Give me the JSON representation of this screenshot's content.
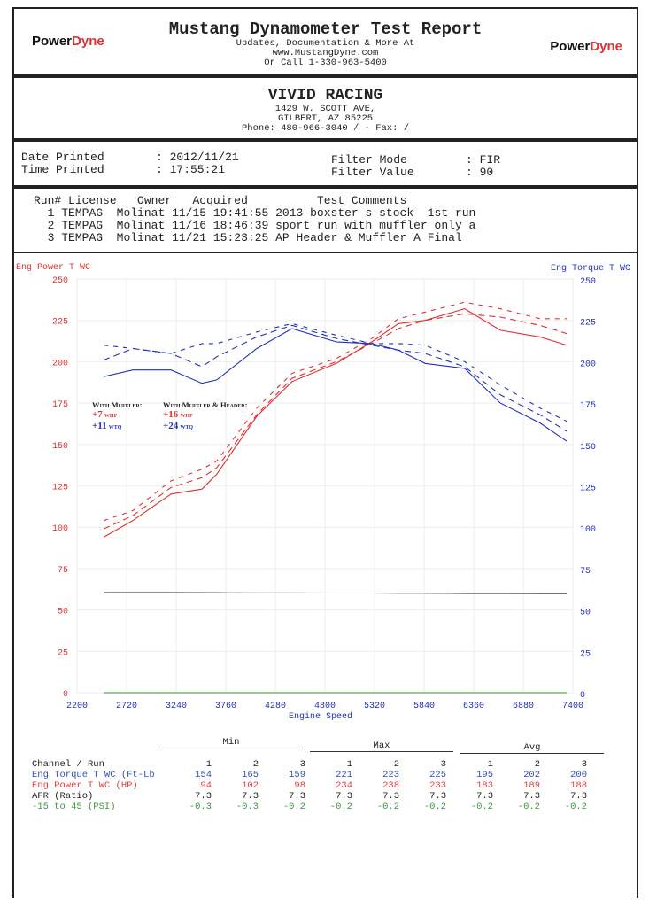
{
  "header": {
    "title": "Mustang Dynamometer Test Report",
    "line1": "Updates, Documentation & More At",
    "line2": "www.MustangDyne.com",
    "line3": "Or Call 1-330-963-5400",
    "logo_text_a": "Power",
    "logo_text_b": "Dyne"
  },
  "shop": {
    "name": "VIVID RACING",
    "address1": "1429 W. SCOTT AVE,",
    "address2": "GILBERT, AZ  85225",
    "phone": "Phone: 480-966-3040 /  - Fax:  /"
  },
  "print_info": {
    "date_label": "Date Printed",
    "date_value": ": 2012/11/21",
    "time_label": "Time Printed",
    "time_value": ": 17:55:21",
    "filter_mode_label": "Filter Mode",
    "filter_mode_value": ": FIR",
    "filter_value_label": "Filter Value",
    "filter_value_value": ": 90"
  },
  "runs": {
    "headers": [
      "Run#",
      "License",
      "Owner",
      "Acquired",
      "Test Comments"
    ],
    "rows": [
      [
        "1",
        "TEMPAG",
        "Molinat",
        "11/15 19:41:55",
        "2013 boxster s stock  1st run"
      ],
      [
        "2",
        "TEMPAG",
        "Molinat",
        "11/16 18:46:39",
        "sport run with muffler only a"
      ],
      [
        "3",
        "TEMPAG",
        "Molinat",
        "11/21 15:23:25",
        "AP Header & Muffler A Final"
      ]
    ]
  },
  "annotation": {
    "muffler_title": "With Muffler:",
    "muffler_hp": "+7",
    "muffler_tq": "+11",
    "header_title": "With Muffler & Header:",
    "header_hp": "+16",
    "header_tq": "+24",
    "hp_unit": "whp",
    "tq_unit": "wtq"
  },
  "chart_data": {
    "type": "line",
    "xlabel": "Engine Speed",
    "ylabel_left": "Eng Power T WC",
    "ylabel_right": "Eng Torque T WC",
    "xlim": [
      2200,
      7400
    ],
    "ylim_left": [
      0,
      250
    ],
    "ylim_right": [
      0,
      250
    ],
    "x_ticks": [
      2200,
      2720,
      3240,
      3760,
      4280,
      4800,
      5320,
      5840,
      6360,
      6880,
      7400
    ],
    "x_tick_labels": [
      "2200",
      "2720",
      "3240",
      "3760",
      "4280",
      "4800",
      "5320",
      "5840",
      "6360",
      "6880",
      "7400"
    ],
    "y_ticks": [
      "0",
      "25",
      "50",
      "75",
      "100",
      "125",
      "150",
      "175",
      "200",
      "225",
      "250"
    ],
    "grid": true,
    "colors": {
      "power": "#e03030",
      "torque": "#2030c0",
      "afr": "#222222",
      "psi": "#2a9a2a"
    },
    "x": [
      2480,
      2785,
      3185,
      3510,
      3665,
      4085,
      4455,
      4920,
      5290,
      5570,
      5850,
      6265,
      6640,
      7055,
      7335
    ],
    "series": [
      {
        "channel": "power",
        "run": 1,
        "values": [
          94,
          104,
          120,
          123,
          132,
          167,
          188,
          199,
          212,
          223,
          225,
          232,
          219,
          215,
          210
        ]
      },
      {
        "channel": "power",
        "run": 2,
        "values": [
          99,
          107,
          124,
          130,
          136,
          168,
          190,
          200,
          211,
          220,
          225,
          229,
          227,
          222,
          217
        ]
      },
      {
        "channel": "power",
        "run": 3,
        "values": [
          104,
          110,
          128,
          135,
          140,
          172,
          193,
          202,
          214,
          226,
          230,
          236,
          232,
          226,
          226
        ]
      },
      {
        "channel": "torque",
        "run": 1,
        "values": [
          191,
          195,
          195,
          187,
          189,
          208,
          220,
          212,
          211,
          207,
          199,
          196,
          175,
          163,
          152
        ]
      },
      {
        "channel": "torque",
        "run": 2,
        "values": [
          201,
          208,
          205,
          197,
          203,
          215,
          222,
          214,
          210,
          207,
          205,
          197,
          180,
          168,
          158
        ]
      },
      {
        "channel": "torque",
        "run": 3,
        "values": [
          210,
          208,
          205,
          211,
          211,
          218,
          223,
          216,
          211,
          211,
          210,
          200,
          186,
          172,
          164
        ]
      },
      {
        "channel": "afr",
        "run": 1,
        "values": [
          60.5,
          60.5,
          60.5,
          60.4,
          60.4,
          60.3,
          60.3,
          60.2,
          60.2,
          60.1,
          60.1,
          60,
          60,
          59.9,
          59.9
        ]
      },
      {
        "channel": "psi",
        "run": 1,
        "values": [
          0,
          0,
          0,
          0,
          0,
          0,
          0,
          0,
          0,
          0,
          0,
          0,
          0,
          0,
          0
        ]
      }
    ]
  },
  "stats": {
    "groups": [
      "Min",
      "Max",
      "Avg"
    ],
    "header": [
      "Channel / Run",
      "1",
      "2",
      "3",
      "1",
      "2",
      "3",
      "1",
      "2",
      "3"
    ],
    "rows": [
      {
        "label": "Eng Torque T WC (Ft-Lb",
        "color": "#3050c0",
        "values": [
          "154",
          "165",
          "159",
          "221",
          "223",
          "225",
          "195",
          "202",
          "200"
        ]
      },
      {
        "label": "Eng Power T WC (HP)",
        "color": "#e04040",
        "values": [
          "94",
          "102",
          "98",
          "234",
          "238",
          "233",
          "183",
          "189",
          "188"
        ]
      },
      {
        "label": "AFR (Ratio)",
        "color": "#222222",
        "values": [
          "7.3",
          "7.3",
          "7.3",
          "7.3",
          "7.3",
          "7.3",
          "7.3",
          "7.3",
          "7.3"
        ]
      },
      {
        "label": "-15 to 45 (PSI)",
        "color": "#3a9a3a",
        "values": [
          "-0.3",
          "-0.3",
          "-0.2",
          "-0.2",
          "-0.2",
          "-0.2",
          "-0.2",
          "-0.2",
          "-0.2"
        ]
      }
    ]
  }
}
